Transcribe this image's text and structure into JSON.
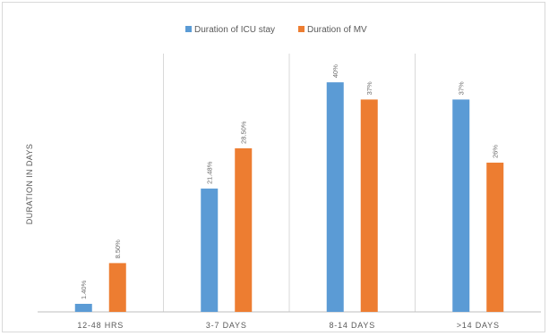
{
  "chart_data": {
    "type": "bar",
    "title": "",
    "xlabel": "",
    "ylabel": "DURATION IN DAYS",
    "categories": [
      "12-48 HRS",
      "3-7 DAYS",
      "8-14 DAYS",
      ">14 DAYS"
    ],
    "series": [
      {
        "name": "Duration of ICU stay",
        "color": "#5b9bd5",
        "values": [
          1.4,
          21.48,
          40,
          37
        ],
        "labels": [
          "1.40%",
          "21.48%",
          "40%",
          "37%"
        ]
      },
      {
        "name": "Duration of MV",
        "color": "#ed7d31",
        "values": [
          8.5,
          28.5,
          37,
          26
        ],
        "labels": [
          "8.50%",
          "28.50%",
          "37%",
          "26%"
        ]
      }
    ],
    "ylim": [
      0,
      45
    ],
    "grid": false,
    "legend_position": "top-center"
  }
}
